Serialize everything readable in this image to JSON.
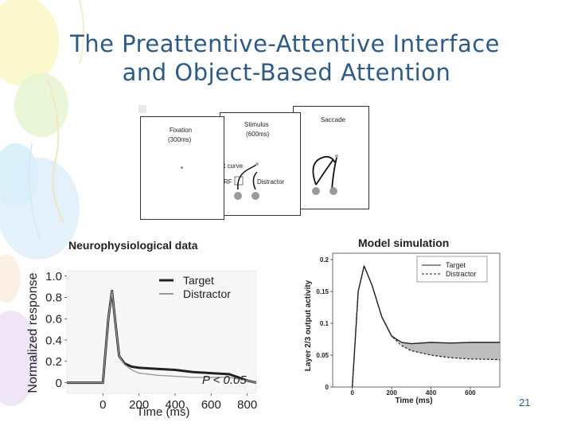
{
  "slide": {
    "title_line1": "The Preattentive-Attentive Interface",
    "title_line2": "and Object-Based Attention",
    "page_number": "21"
  },
  "diagram": {
    "fixation_label": "Fixation",
    "fixation_time": "(300ms)",
    "stimulus_label": "Stimulus",
    "stimulus_time": "(600ms)",
    "saccade_label": "Saccade",
    "target_curve_label": "Target curve",
    "rf_label": "RF",
    "distractor_label": "Distractor"
  },
  "chart_data": [
    {
      "type": "line",
      "title": "Neurophysiological data",
      "xlabel": "Time (ms)",
      "ylabel": "Normalized response",
      "xlim": [
        -200,
        850
      ],
      "ylim": [
        -0.1,
        1.05
      ],
      "x_ticks": [
        0,
        200,
        400,
        600,
        800
      ],
      "x_tick_labels": [
        "0",
        "200",
        "400",
        "600",
        "800"
      ],
      "y_ticks": [
        0,
        0.2,
        0.4,
        0.6,
        0.8,
        1.0
      ],
      "y_tick_labels": [
        "0",
        "0.2",
        "0.4",
        "0.6",
        "0.8",
        "1.0"
      ],
      "annotation": "P < 0.05",
      "legend_position": "top-right",
      "series": [
        {
          "name": "Target",
          "color": "#222222",
          "x": [
            -200,
            -100,
            0,
            30,
            50,
            70,
            90,
            120,
            160,
            200,
            300,
            400,
            500,
            600,
            700,
            800,
            850
          ],
          "y": [
            0.0,
            0.0,
            0.0,
            0.6,
            0.86,
            0.55,
            0.25,
            0.18,
            0.15,
            0.14,
            0.13,
            0.12,
            0.1,
            0.09,
            0.08,
            0.02,
            0.0
          ]
        },
        {
          "name": "Distractor",
          "color": "#999999",
          "x": [
            -200,
            -100,
            0,
            30,
            50,
            70,
            90,
            120,
            160,
            200,
            300,
            400,
            500,
            600,
            700,
            800,
            850
          ],
          "y": [
            0.0,
            0.0,
            0.0,
            0.6,
            0.86,
            0.55,
            0.25,
            0.17,
            0.12,
            0.09,
            0.07,
            0.06,
            0.05,
            0.05,
            0.05,
            0.02,
            0.0
          ]
        }
      ]
    },
    {
      "type": "line",
      "title": "Model simulation",
      "xlabel": "Time (ms)",
      "ylabel": "Layer 2/3 output activity",
      "xlim": [
        -100,
        750
      ],
      "ylim": [
        0,
        0.21
      ],
      "x_ticks": [
        0,
        200,
        400,
        600
      ],
      "x_tick_labels": [
        "0",
        "200",
        "400",
        "600"
      ],
      "y_ticks": [
        0,
        0.05,
        0.1,
        0.15,
        0.2
      ],
      "y_tick_labels": [
        "0",
        "0.05",
        "0.1",
        "0.15",
        "0.2"
      ],
      "legend_position": "top-right",
      "series": [
        {
          "name": "Target",
          "color": "#222222",
          "dash": "solid",
          "x": [
            0,
            30,
            60,
            100,
            150,
            200,
            250,
            300,
            400,
            500,
            600,
            750
          ],
          "y": [
            0.0,
            0.15,
            0.19,
            0.16,
            0.11,
            0.08,
            0.07,
            0.068,
            0.07,
            0.069,
            0.07,
            0.07
          ]
        },
        {
          "name": "Distractor",
          "color": "#222222",
          "dash": "dashed",
          "x": [
            0,
            30,
            60,
            100,
            150,
            200,
            250,
            300,
            400,
            500,
            600,
            750
          ],
          "y": [
            0.0,
            0.15,
            0.19,
            0.16,
            0.11,
            0.08,
            0.065,
            0.057,
            0.05,
            0.046,
            0.044,
            0.043
          ]
        }
      ]
    }
  ]
}
